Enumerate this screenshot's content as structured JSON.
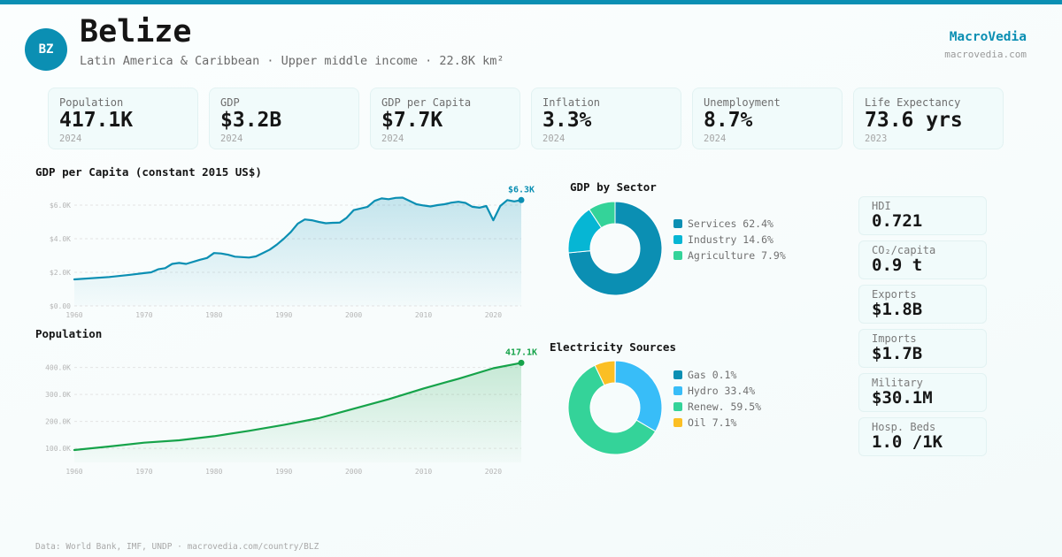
{
  "header": {
    "flag_code": "BZ",
    "country": "Belize",
    "subtitle": "Latin America & Caribbean · Upper middle income · 22.8K km²",
    "brand": "MacroVedia",
    "brand_url": "macrovedia.com"
  },
  "colors": {
    "accent": "#0b8fb3",
    "population_line": "#16a34a"
  },
  "kpis": [
    {
      "label": "Population",
      "value": "417.1K",
      "year": "2024"
    },
    {
      "label": "GDP",
      "value": "$3.2B",
      "year": "2024"
    },
    {
      "label": "GDP per Capita",
      "value": "$7.7K",
      "year": "2024"
    },
    {
      "label": "Inflation",
      "value": "3.3%",
      "year": "2024"
    },
    {
      "label": "Unemployment",
      "value": "8.7%",
      "year": "2024"
    },
    {
      "label": "Life Expectancy",
      "value": "73.6 yrs",
      "year": "2023"
    }
  ],
  "side_stats": [
    {
      "label": "HDI",
      "value": "0.721"
    },
    {
      "label": "CO₂/capita",
      "value": "0.9 t"
    },
    {
      "label": "Exports",
      "value": "$1.8B"
    },
    {
      "label": "Imports",
      "value": "$1.7B"
    },
    {
      "label": "Military",
      "value": "$30.1M"
    },
    {
      "label": "Hosp. Beds",
      "value": "1.0 /1K"
    }
  ],
  "footer": "Data: World Bank, IMF, UNDP · macrovedia.com/country/BLZ",
  "chart_data": [
    {
      "type": "area",
      "title": "GDP per Capita (constant 2015 US$)",
      "xlabel": "",
      "ylabel": "",
      "xlim": [
        1960,
        2024
      ],
      "ylim": [
        0,
        6000
      ],
      "x_ticks": [
        "1960",
        "1970",
        "1980",
        "1990",
        "2000",
        "2010",
        "2020"
      ],
      "y_ticks": [
        "$0.00",
        "$2.0K",
        "$4.0K",
        "$6.0K"
      ],
      "y_tick_values": [
        0,
        2000,
        4000,
        6000
      ],
      "grid": true,
      "end_label": "$6.3K",
      "color": "#0b8fb3",
      "x": [
        1960,
        1965,
        1968,
        1970,
        1971,
        1972,
        1973,
        1974,
        1975,
        1976,
        1978,
        1979,
        1980,
        1981,
        1982,
        1983,
        1985,
        1986,
        1987,
        1988,
        1989,
        1990,
        1991,
        1992,
        1993,
        1994,
        1995,
        1996,
        1997,
        1998,
        1999,
        2000,
        2001,
        2002,
        2003,
        2004,
        2005,
        2006,
        2007,
        2008,
        2009,
        2010,
        2011,
        2012,
        2013,
        2014,
        2015,
        2016,
        2017,
        2018,
        2019,
        2020,
        2021,
        2022,
        2023,
        2024
      ],
      "values": [
        1580,
        1720,
        1850,
        1950,
        2000,
        2180,
        2250,
        2500,
        2560,
        2500,
        2750,
        2850,
        3150,
        3120,
        3050,
        2930,
        2880,
        2950,
        3150,
        3350,
        3650,
        4000,
        4400,
        4900,
        5150,
        5100,
        5000,
        4920,
        4950,
        4960,
        5250,
        5700,
        5800,
        5900,
        6250,
        6400,
        6350,
        6430,
        6450,
        6250,
        6050,
        5980,
        5920,
        6000,
        6050,
        6150,
        6200,
        6130,
        5900,
        5850,
        5950,
        5100,
        5950,
        6300,
        6220,
        6300
      ]
    },
    {
      "type": "area",
      "title": "Population",
      "xlabel": "",
      "ylabel": "",
      "xlim": [
        1960,
        2024
      ],
      "ylim": [
        48000,
        420000
      ],
      "x_ticks": [
        "1960",
        "1970",
        "1980",
        "1990",
        "2000",
        "2010",
        "2020"
      ],
      "y_ticks": [
        "100.0K",
        "200.0K",
        "300.0K",
        "400.0K"
      ],
      "y_tick_values": [
        100000,
        200000,
        300000,
        400000
      ],
      "grid": true,
      "end_label": "417.1K",
      "color": "#16a34a",
      "x": [
        1960,
        1965,
        1970,
        1975,
        1980,
        1985,
        1990,
        1995,
        2000,
        2005,
        2010,
        2015,
        2020,
        2024
      ],
      "values": [
        94000,
        107000,
        121000,
        130000,
        145000,
        165000,
        187000,
        212000,
        247000,
        282000,
        322000,
        358000,
        397000,
        417100
      ]
    },
    {
      "type": "pie",
      "title": "GDP by Sector",
      "labels": [
        "Services",
        "Industry",
        "Agriculture"
      ],
      "values": [
        62.4,
        14.6,
        7.9
      ],
      "legend": [
        "Services 62.4%",
        "Industry 14.6%",
        "Agriculture 7.9%"
      ],
      "colors": [
        "#0b8fb3",
        "#06b6d4",
        "#34d399"
      ],
      "donut": true
    },
    {
      "type": "pie",
      "title": "Electricity Sources",
      "labels": [
        "Gas",
        "Hydro",
        "Renew.",
        "Oil"
      ],
      "values": [
        0.1,
        33.4,
        59.5,
        7.1
      ],
      "legend": [
        "Gas 0.1%",
        "Hydro 33.4%",
        "Renew. 59.5%",
        "Oil 7.1%"
      ],
      "colors": [
        "#0b8fb3",
        "#38bdf8",
        "#34d399",
        "#fbbf24"
      ],
      "donut": true
    }
  ]
}
